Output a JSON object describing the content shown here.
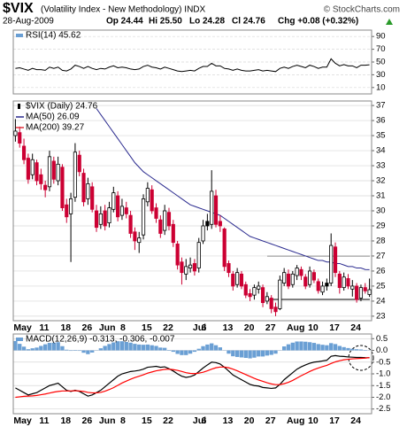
{
  "header": {
    "title": "$VIX",
    "subtitle": "(Volatility Index - New Methodology) INDX",
    "source": "© StockCharts.com",
    "date": "28-Aug-2009",
    "open": "Op 24.44",
    "high": "Hi 25.50",
    "low": "Lo 24.28",
    "close": "Cl 24.76",
    "change": "Chg +0.08 (+0.32%)"
  },
  "chart_data": [
    {
      "type": "line",
      "legend": "RSI(14) 45.62",
      "color": "#000000",
      "ylim": [
        0,
        100
      ],
      "yticks": [
        90,
        70,
        50,
        30,
        10
      ],
      "grid": true,
      "values": [
        40,
        41,
        39,
        37,
        40,
        38,
        38,
        37,
        42,
        40,
        42,
        37,
        36,
        39,
        45,
        43,
        40,
        43,
        40,
        38,
        40,
        39,
        42,
        44,
        41,
        42,
        41,
        39,
        38,
        39,
        43,
        45,
        42,
        41,
        39,
        42,
        40,
        38,
        36,
        35,
        36,
        37,
        36,
        40,
        43,
        43,
        48,
        44,
        44,
        40,
        39,
        37,
        39,
        37,
        36,
        36,
        37,
        38,
        36,
        37,
        36,
        35,
        40,
        42,
        40,
        43,
        45,
        43,
        41,
        45,
        43,
        40,
        42,
        42,
        55,
        48,
        44,
        46,
        44,
        44,
        41,
        45,
        45,
        45.62
      ]
    },
    {
      "type": "candlestick",
      "name": "$VIX (Daily) 24.76",
      "up_color": "#000000",
      "down_color": "#cc0033",
      "ylim": [
        22.7,
        37.3
      ],
      "yticks": [
        37,
        36,
        35,
        34,
        33,
        32,
        31,
        30,
        29,
        28,
        27,
        26,
        25,
        24,
        23
      ],
      "grid": true,
      "categories": [
        "May",
        null,
        null,
        null,
        null,
        null,
        "11",
        null,
        null,
        null,
        null,
        "18",
        null,
        null,
        null,
        null,
        "26",
        null,
        null,
        null,
        "Jun",
        null,
        null,
        null,
        null,
        "8",
        null,
        null,
        null,
        null,
        "15",
        null,
        null,
        null,
        null,
        "22",
        null,
        null,
        null,
        null,
        null,
        null,
        "Jul",
        null,
        "6",
        null,
        null,
        null,
        null,
        "13",
        null,
        null,
        null,
        null,
        "20",
        null,
        null,
        null,
        null,
        "27",
        null,
        null,
        null,
        null,
        "Aug",
        null,
        null,
        null,
        null,
        "10",
        null,
        null,
        null,
        null,
        "17",
        null,
        null,
        null,
        null,
        "24",
        null,
        null,
        null,
        null
      ],
      "open": [
        35.0,
        35.2,
        34.3,
        33.5,
        32.4,
        33.2,
        32.4,
        31.7,
        31.6,
        33.3,
        32.0,
        32.9,
        30.4,
        29.8,
        30.9,
        33.7,
        32.5,
        30.8,
        31.6,
        30.0,
        29.1,
        30.0,
        29.2,
        30.1,
        31.0,
        29.7,
        30.2,
        29.7,
        28.6,
        27.9,
        28.4,
        30.6,
        31.4,
        30.2,
        29.4,
        28.7,
        29.9,
        29.1,
        27.8,
        26.6,
        25.8,
        26.2,
        26.5,
        26.2,
        28.0,
        29.3,
        29.1,
        31.0,
        29.3,
        28.8,
        26.5,
        25.8,
        25.1,
        25.8,
        25.1,
        24.5,
        24.4,
        24.8,
        24.9,
        24.0,
        24.2,
        23.6,
        23.5,
        25.2,
        25.8,
        25.1,
        25.7,
        26.1,
        25.6,
        25.1,
        25.9,
        25.3,
        24.6,
        25.2,
        25.2,
        27.6,
        25.8,
        24.9,
        25.5,
        24.8,
        25.0,
        24.2,
        24.9,
        24.44
      ],
      "high": [
        36.1,
        35.6,
        34.8,
        33.8,
        33.8,
        33.4,
        32.8,
        32.0,
        34.0,
        33.6,
        33.6,
        33.1,
        30.8,
        31.2,
        34.5,
        34.0,
        32.8,
        32.2,
        31.9,
        30.4,
        30.3,
        30.4,
        30.6,
        31.6,
        31.3,
        30.8,
        30.6,
        30.0,
        28.9,
        28.6,
        31.1,
        31.9,
        31.7,
        30.5,
        29.7,
        30.4,
        30.2,
        29.4,
        28.0,
        26.9,
        26.8,
        26.9,
        26.8,
        28.2,
        29.4,
        29.8,
        32.7,
        31.4,
        29.7,
        28.9,
        26.7,
        26.0,
        26.2,
        26.0,
        25.3,
        24.8,
        25.1,
        25.3,
        25.1,
        24.6,
        24.4,
        23.9,
        25.7,
        26.2,
        26.1,
        26.0,
        26.4,
        26.3,
        25.8,
        26.3,
        26.1,
        25.5,
        25.3,
        25.5,
        28.5,
        27.9,
        26.0,
        25.9,
        25.8,
        25.4,
        25.2,
        25.1,
        25.2,
        25.5
      ],
      "low": [
        34.6,
        34.2,
        33.1,
        31.8,
        32.1,
        31.7,
        31.4,
        30.9,
        31.3,
        31.8,
        31.7,
        30.0,
        29.2,
        26.6,
        30.6,
        32.3,
        30.3,
        30.4,
        29.9,
        28.6,
        28.8,
        28.7,
        28.9,
        29.9,
        29.3,
        29.4,
        29.5,
        28.2,
        27.4,
        27.2,
        28.1,
        30.3,
        29.8,
        29.2,
        28.2,
        28.4,
        28.7,
        27.6,
        26.1,
        25.1,
        25.4,
        25.9,
        25.7,
        25.9,
        27.8,
        28.7,
        28.8,
        28.9,
        28.6,
        26.0,
        25.6,
        24.7,
        24.9,
        24.8,
        24.2,
        24.0,
        24.1,
        24.5,
        23.6,
        23.8,
        23.2,
        23.0,
        23.4,
        25.0,
        24.8,
        24.9,
        25.4,
        25.4,
        24.8,
        24.9,
        25.2,
        24.5,
        24.4,
        24.7,
        25.0,
        25.6,
        24.5,
        24.7,
        24.8,
        24.3,
        23.9,
        24.0,
        24.5,
        24.28
      ],
      "close": [
        35.3,
        34.5,
        33.4,
        32.1,
        33.4,
        32.0,
        31.8,
        31.4,
        33.6,
        32.1,
        33.1,
        30.2,
        29.6,
        30.8,
        33.9,
        32.6,
        30.6,
        31.8,
        30.1,
        28.9,
        29.8,
        29.0,
        30.2,
        31.2,
        29.6,
        30.3,
        29.8,
        28.5,
        28.0,
        28.2,
        30.8,
        31.5,
        30.0,
        29.5,
        28.5,
        30.0,
        29.0,
        27.9,
        26.4,
        25.9,
        26.3,
        26.4,
        26.0,
        27.9,
        29.0,
        29.0,
        31.3,
        29.1,
        29.0,
        26.3,
        25.9,
        25.0,
        25.9,
        25.0,
        24.4,
        24.3,
        24.9,
        25.0,
        23.9,
        24.3,
        23.5,
        23.3,
        25.4,
        25.9,
        25.0,
        25.8,
        26.2,
        25.7,
        25.0,
        26.0,
        25.4,
        24.7,
        25.0,
        25.0,
        27.7,
        25.9,
        24.9,
        25.6,
        25.0,
        25.0,
        24.1,
        24.9,
        24.68,
        24.76
      ],
      "series": [
        {
          "name": "MA(50) 26.09",
          "color": "#2b2b8f",
          "values": [
            null,
            null,
            null,
            null,
            null,
            null,
            null,
            null,
            null,
            null,
            null,
            null,
            null,
            null,
            null,
            null,
            null,
            null,
            null,
            36.8,
            36.4,
            36.0,
            35.6,
            35.2,
            34.8,
            34.4,
            34.0,
            33.6,
            33.2,
            32.9,
            32.6,
            32.4,
            32.2,
            32.0,
            31.8,
            31.6,
            31.4,
            31.2,
            31.0,
            30.8,
            30.6,
            30.4,
            30.3,
            30.2,
            30.1,
            30.0,
            29.9,
            29.8,
            29.7,
            29.5,
            29.3,
            29.1,
            28.9,
            28.7,
            28.5,
            28.3,
            28.2,
            28.1,
            28.0,
            27.9,
            27.8,
            27.7,
            27.6,
            27.5,
            27.4,
            27.3,
            27.2,
            27.1,
            27.0,
            26.9,
            26.8,
            26.7,
            26.7,
            26.6,
            26.6,
            26.5,
            26.5,
            26.4,
            26.3,
            26.3,
            26.2,
            26.2,
            26.1,
            26.09
          ]
        },
        {
          "name": "MA(200) 39.27",
          "color": "#e0303a"
        }
      ]
    },
    {
      "type": "combo",
      "legend": "MACD(12,26,9) -0.313, -0.306, -0.007",
      "ylim": [
        -2.7,
        0.7
      ],
      "yticks": [
        0.5,
        {
          "value": 0,
          "label": "0.0"
        },
        -0.5,
        {
          "value": -1,
          "label": "-1.0"
        },
        -1.5,
        {
          "value": -2,
          "label": "-2.0"
        },
        -2.5
      ],
      "grid": true,
      "categories": [
        "May",
        null,
        null,
        null,
        null,
        null,
        "11",
        null,
        null,
        null,
        null,
        "18",
        null,
        null,
        null,
        null,
        "26",
        null,
        null,
        null,
        "Jun",
        null,
        null,
        null,
        null,
        "8",
        null,
        null,
        null,
        null,
        "15",
        null,
        null,
        null,
        null,
        "22",
        null,
        null,
        null,
        null,
        null,
        null,
        "Jul",
        null,
        "6",
        null,
        null,
        null,
        null,
        "13",
        null,
        null,
        null,
        null,
        "20",
        null,
        null,
        null,
        null,
        "27",
        null,
        null,
        null,
        null,
        "Aug",
        null,
        null,
        null,
        null,
        "10",
        null,
        null,
        null,
        null,
        "17",
        null,
        null,
        null,
        null,
        "24",
        null,
        null,
        null,
        null
      ],
      "series": [
        {
          "style": "bar",
          "color": "#6a9fd4",
          "values": [
            0.4,
            0.28,
            0.16,
            0.05,
            0.09,
            0.12,
            0.19,
            0.26,
            0.32,
            0.33,
            0.35,
            0.18,
            0.03,
            -0.02,
            0.02,
            -0.02,
            -0.1,
            -0.16,
            -0.09,
            0.01,
            0.09,
            0.19,
            0.27,
            0.34,
            0.39,
            0.39,
            0.36,
            0.33,
            0.28,
            0.25,
            0.24,
            0.25,
            0.22,
            0.19,
            0.12,
            0.11,
            0.02,
            -0.06,
            -0.15,
            -0.2,
            -0.2,
            -0.14,
            -0.06,
            0.07,
            0.18,
            0.25,
            0.3,
            0.22,
            0.13,
            -0.01,
            -0.14,
            -0.25,
            -0.28,
            -0.3,
            -0.32,
            -0.34,
            -0.31,
            -0.26,
            -0.26,
            -0.22,
            -0.19,
            -0.14,
            0.01,
            0.17,
            0.26,
            0.33,
            0.38,
            0.38,
            0.37,
            0.35,
            0.32,
            0.27,
            0.24,
            0.22,
            0.31,
            0.27,
            0.19,
            0.14,
            0.1,
            0.07,
            0.05,
            0.04,
            0.02,
            -0.007
          ]
        },
        {
          "style": "line",
          "color": "#000000",
          "values": [
            -1.6,
            -1.7,
            -1.8,
            -1.9,
            -1.85,
            -1.8,
            -1.7,
            -1.6,
            -1.5,
            -1.45,
            -1.4,
            -1.55,
            -1.7,
            -1.75,
            -1.7,
            -1.75,
            -1.85,
            -1.95,
            -1.9,
            -1.8,
            -1.7,
            -1.55,
            -1.4,
            -1.25,
            -1.1,
            -1.0,
            -0.95,
            -0.9,
            -0.88,
            -0.85,
            -0.8,
            -0.72,
            -0.7,
            -0.68,
            -0.72,
            -0.7,
            -0.78,
            -0.88,
            -1.0,
            -1.1,
            -1.15,
            -1.12,
            -1.05,
            -0.9,
            -0.75,
            -0.62,
            -0.5,
            -0.52,
            -0.58,
            -0.72,
            -0.88,
            -1.05,
            -1.15,
            -1.25,
            -1.35,
            -1.45,
            -1.5,
            -1.52,
            -1.58,
            -1.6,
            -1.62,
            -1.6,
            -1.45,
            -1.25,
            -1.1,
            -0.95,
            -0.8,
            -0.7,
            -0.62,
            -0.55,
            -0.5,
            -0.48,
            -0.45,
            -0.42,
            -0.25,
            -0.22,
            -0.25,
            -0.26,
            -0.28,
            -0.29,
            -0.3,
            -0.3,
            -0.31,
            -0.313
          ]
        },
        {
          "style": "line",
          "color": "#ff0000",
          "values": [
            -2.0,
            -1.98,
            -1.96,
            -1.95,
            -1.94,
            -1.92,
            -1.89,
            -1.86,
            -1.82,
            -1.78,
            -1.75,
            -1.73,
            -1.73,
            -1.73,
            -1.72,
            -1.73,
            -1.75,
            -1.79,
            -1.81,
            -1.81,
            -1.79,
            -1.74,
            -1.67,
            -1.59,
            -1.49,
            -1.39,
            -1.31,
            -1.23,
            -1.16,
            -1.1,
            -1.04,
            -0.97,
            -0.92,
            -0.87,
            -0.84,
            -0.81,
            -0.8,
            -0.82,
            -0.85,
            -0.9,
            -0.95,
            -0.98,
            -0.99,
            -0.97,
            -0.93,
            -0.87,
            -0.8,
            -0.74,
            -0.71,
            -0.71,
            -0.74,
            -0.8,
            -0.87,
            -0.95,
            -1.03,
            -1.11,
            -1.19,
            -1.26,
            -1.32,
            -1.38,
            -1.43,
            -1.46,
            -1.46,
            -1.42,
            -1.36,
            -1.28,
            -1.18,
            -1.08,
            -0.99,
            -0.9,
            -0.82,
            -0.75,
            -0.69,
            -0.64,
            -0.56,
            -0.49,
            -0.44,
            -0.4,
            -0.38,
            -0.36,
            -0.35,
            -0.34,
            -0.33,
            -0.306
          ]
        }
      ]
    }
  ]
}
